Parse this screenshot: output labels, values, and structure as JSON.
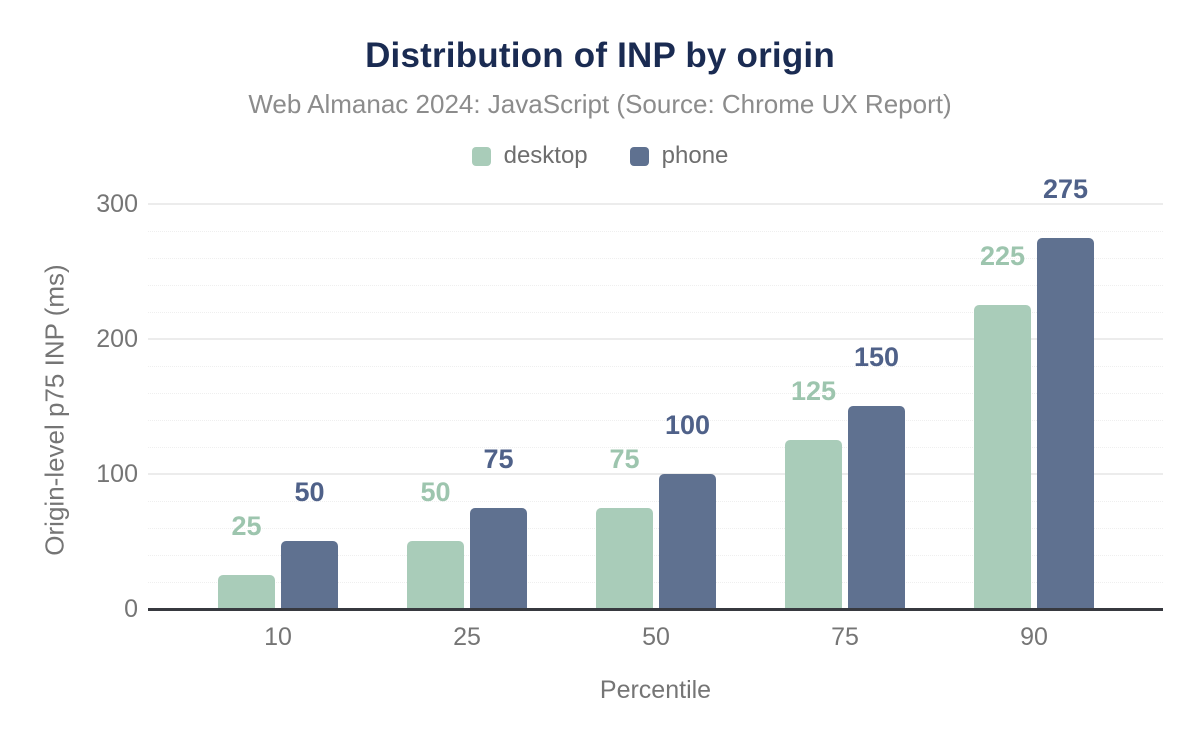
{
  "header": {
    "title": "Distribution of INP by origin",
    "subtitle": "Web Almanac 2024: JavaScript (Source: Chrome UX Report)"
  },
  "chart_data": {
    "type": "bar",
    "title": "Distribution of INP by origin",
    "subtitle": "Web Almanac 2024: JavaScript (Source: Chrome UX Report)",
    "categories": [
      "10",
      "25",
      "50",
      "75",
      "90"
    ],
    "series": [
      {
        "name": "desktop",
        "color": "#a9ccb9",
        "label_color": "#9dc5ae",
        "values": [
          25,
          50,
          75,
          125,
          225
        ]
      },
      {
        "name": "phone",
        "color": "#5f7190",
        "label_color": "#4f6189",
        "values": [
          50,
          75,
          100,
          150,
          275
        ]
      }
    ],
    "xlabel": "Percentile",
    "ylabel": "Origin-level p75 INP (ms)",
    "ylim": [
      0,
      300
    ],
    "y_ticks": [
      0,
      100,
      200,
      300
    ],
    "y_minor_step": 20,
    "grid": true,
    "legend_position": "top",
    "colors": {
      "title_text": "#1a2b52",
      "subtitle_text": "#8c8c8c",
      "axis_text": "#757575",
      "legend_text": "#6e6e6e",
      "axis_line": "#37393f",
      "major_gridline": "#ececec",
      "minor_gridline": "#efefef",
      "background": "#ffffff"
    }
  }
}
